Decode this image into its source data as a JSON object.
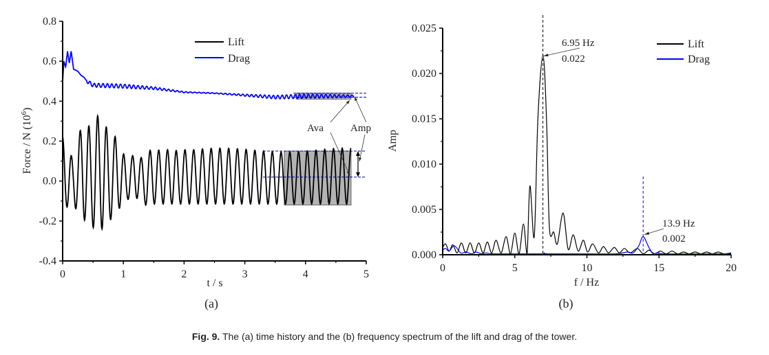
{
  "caption": {
    "prefix": "Fig. 9.",
    "text": " The (a) time history and the (b) frequency spectrum of the lift and drag of the tower."
  },
  "colors": {
    "lift": "#000000",
    "drag": "#0000ff",
    "box_fill": "#b3b3b3",
    "ref_dash_drag": "#00008b"
  },
  "chart_data": [
    {
      "panel": "(a)",
      "type": "line",
      "xlabel": "t / s",
      "ylabel": "Force / N (10^6)",
      "ylabel_main": "Force / N (10",
      "ylabel_sup": "6",
      "ylabel_end": ")",
      "xlim": [
        0,
        5
      ],
      "ylim": [
        -0.4,
        0.8
      ],
      "xticks": [
        "0",
        "1",
        "2",
        "3",
        "4",
        "5"
      ],
      "yticks": [
        "-0.4",
        "-0.2",
        "0.0",
        "0.2",
        "0.4",
        "0.6",
        "0.8"
      ],
      "legend": {
        "position": "top-center",
        "entries": [
          "Lift",
          "Drag"
        ]
      },
      "series": [
        {
          "name": "Lift",
          "description": "oscillation about ~0.02 at ~6.95 Hz; larger transient amplitude up to ~0.35 / -0.25 before t≈1 s, then steady amplitude ~±0.14",
          "frequency_hz": 6.95,
          "mean": 0.02,
          "steady_amplitude": 0.135,
          "peaks": [
            [
              0.0,
              0.22
            ],
            [
              0.17,
              0.11
            ],
            [
              0.32,
              0.29
            ],
            [
              0.47,
              0.27
            ],
            [
              0.62,
              0.35
            ],
            [
              0.77,
              0.23
            ],
            [
              0.9,
              0.22
            ],
            [
              1.05,
              0.1
            ],
            [
              1.2,
              0.14
            ],
            [
              1.33,
              0.11
            ],
            [
              1.48,
              0.17
            ],
            [
              1.62,
              0.15
            ],
            [
              1.77,
              0.16
            ],
            [
              1.92,
              0.15
            ],
            [
              2.06,
              0.16
            ]
          ],
          "troughs": [
            [
              0.08,
              -0.13
            ],
            [
              0.24,
              -0.14
            ],
            [
              0.39,
              -0.21
            ],
            [
              0.54,
              -0.24
            ],
            [
              0.69,
              -0.24
            ],
            [
              0.84,
              -0.17
            ],
            [
              0.98,
              -0.12
            ],
            [
              1.12,
              -0.08
            ],
            [
              1.27,
              -0.09
            ],
            [
              1.4,
              -0.13
            ]
          ]
        },
        {
          "name": "Drag",
          "description": "starts ~0.50, transient peaks ~0.65 near t≈0.1 s, decays to ~0.48 by t≈0.5 s then slowly to ~0.42 with small oscillation",
          "points": [
            [
              0.0,
              0.5
            ],
            [
              0.02,
              0.6
            ],
            [
              0.05,
              0.57
            ],
            [
              0.08,
              0.65
            ],
            [
              0.11,
              0.59
            ],
            [
              0.14,
              0.65
            ],
            [
              0.18,
              0.56
            ],
            [
              0.25,
              0.55
            ],
            [
              0.3,
              0.53
            ],
            [
              0.35,
              0.52
            ],
            [
              0.4,
              0.5
            ],
            [
              0.5,
              0.48
            ],
            [
              1.0,
              0.475
            ],
            [
              1.5,
              0.465
            ],
            [
              2.0,
              0.445
            ],
            [
              2.5,
              0.44
            ],
            [
              3.0,
              0.43
            ],
            [
              3.5,
              0.42
            ],
            [
              4.0,
              0.425
            ],
            [
              4.5,
              0.425
            ],
            [
              4.8,
              0.425
            ]
          ],
          "osc_amplitude": 0.01,
          "frequency_hz": 13.9
        }
      ],
      "annotations": [
        {
          "text": "Ava",
          "meaning": "average value"
        },
        {
          "text": "Amp",
          "meaning": "amplitude"
        },
        {
          "type": "highlight-box",
          "series": "Drag",
          "x_range": [
            3.85,
            4.75
          ],
          "y_range": [
            0.41,
            0.44
          ]
        },
        {
          "type": "highlight-box",
          "series": "Lift",
          "x_range": [
            3.65,
            4.75
          ],
          "y_range": [
            -0.12,
            0.15
          ]
        },
        {
          "type": "reference-lines",
          "series": "Drag",
          "values": [
            0.42,
            0.44
          ]
        },
        {
          "type": "reference-lines",
          "series": "Lift",
          "values": [
            0.02,
            0.15
          ]
        }
      ]
    },
    {
      "panel": "(b)",
      "type": "line",
      "xlabel": "f / Hz",
      "ylabel": "Amp",
      "xlim": [
        0,
        20
      ],
      "ylim": [
        0,
        0.025
      ],
      "xticks": [
        "0",
        "5",
        "10",
        "15",
        "20"
      ],
      "yticks": [
        "0.000",
        "0.005",
        "0.010",
        "0.015",
        "0.020",
        "0.025"
      ],
      "legend": {
        "position": "top-right",
        "entries": [
          "Lift",
          "Drag"
        ]
      },
      "series": [
        {
          "name": "Lift",
          "points": [
            [
              0,
              0.0008
            ],
            [
              0.2,
              0.0012
            ],
            [
              0.45,
              0.0004
            ],
            [
              0.7,
              0.0011
            ],
            [
              1.0,
              0.0002
            ],
            [
              1.3,
              0.0013
            ],
            [
              1.6,
              0.0002
            ],
            [
              1.9,
              0.0013
            ],
            [
              2.2,
              0.0002
            ],
            [
              2.5,
              0.0013
            ],
            [
              2.8,
              0.0002
            ],
            [
              3.1,
              0.0014
            ],
            [
              3.4,
              0.0002
            ],
            [
              3.7,
              0.0016
            ],
            [
              4.05,
              0.0002
            ],
            [
              4.4,
              0.002
            ],
            [
              4.7,
              0.0001
            ],
            [
              5.0,
              0.0024
            ],
            [
              5.3,
              0.0001
            ],
            [
              5.6,
              0.0034
            ],
            [
              5.85,
              0.0001
            ],
            [
              6.05,
              0.0076
            ],
            [
              6.35,
              0.002
            ],
            [
              6.6,
              0.015
            ],
            [
              6.95,
              0.022
            ],
            [
              7.2,
              0.015
            ],
            [
              7.4,
              0.003
            ],
            [
              7.7,
              0.0025
            ],
            [
              7.95,
              0.0012
            ],
            [
              8.35,
              0.0046
            ],
            [
              8.7,
              0.0006
            ],
            [
              9.05,
              0.0022
            ],
            [
              9.4,
              0.0004
            ],
            [
              9.75,
              0.0016
            ],
            [
              10.05,
              0.0003
            ],
            [
              10.4,
              0.0012
            ],
            [
              10.8,
              0.0002
            ],
            [
              11.15,
              0.0009
            ],
            [
              11.5,
              0.0002
            ],
            [
              11.9,
              0.0008
            ],
            [
              12.25,
              0.0002
            ],
            [
              12.6,
              0.0007
            ],
            [
              13.0,
              0.0002
            ],
            [
              13.5,
              0.0007
            ],
            [
              13.9,
              0.0001
            ],
            [
              14.3,
              0.0005
            ],
            [
              14.7,
              0.0001
            ],
            [
              15.1,
              0.0004
            ],
            [
              15.5,
              0.0001
            ],
            [
              15.9,
              0.0004
            ],
            [
              16.3,
              0.0001
            ],
            [
              16.7,
              0.0003
            ],
            [
              17.1,
              0.0001
            ],
            [
              17.5,
              0.0003
            ],
            [
              17.9,
              0.0001
            ],
            [
              18.3,
              0.0003
            ],
            [
              18.7,
              0.0001
            ],
            [
              19.1,
              0.0003
            ],
            [
              19.5,
              0.0001
            ],
            [
              20.0,
              0.0002
            ]
          ]
        },
        {
          "name": "Drag",
          "points": [
            [
              0,
              0.0005
            ],
            [
              0.2,
              0.0007
            ],
            [
              0.45,
              0.0004
            ],
            [
              0.8,
              0.001
            ],
            [
              1.25,
              0.0002
            ],
            [
              1.6,
              0.0003
            ],
            [
              2.0,
              0.0001
            ],
            [
              2.3,
              0.0003
            ],
            [
              2.7,
              0.0001
            ],
            [
              3.0,
              0.0002
            ],
            [
              3.5,
              0.0001
            ],
            [
              5.0,
              0.0001
            ],
            [
              6.9,
              0.0001
            ],
            [
              7.05,
              0.0002
            ],
            [
              7.3,
              0.0001
            ],
            [
              10.0,
              0.0001
            ],
            [
              12.0,
              0.0001
            ],
            [
              12.8,
              0.0003
            ],
            [
              13.2,
              0.0002
            ],
            [
              13.6,
              0.001
            ],
            [
              13.9,
              0.002
            ],
            [
              14.3,
              0.0008
            ],
            [
              14.6,
              0.0001
            ],
            [
              15.0,
              0.0003
            ],
            [
              15.3,
              0.0001
            ],
            [
              20.0,
              0.0001
            ]
          ]
        }
      ],
      "annotations": [
        {
          "text_line1": "6.95 Hz",
          "text_line2": "0.022",
          "x": 6.95,
          "y": 0.022,
          "series": "Lift"
        },
        {
          "text_line1": "13.9 Hz",
          "text_line2": "0.002",
          "x": 13.9,
          "y": 0.002,
          "series": "Drag"
        }
      ]
    }
  ]
}
